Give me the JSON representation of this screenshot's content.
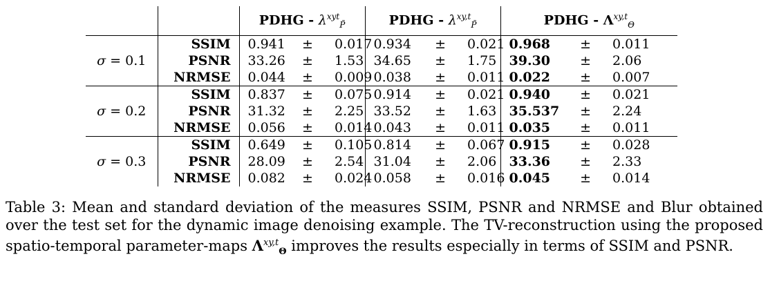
{
  "table": {
    "headers": [
      {
        "method": "PDHG - ",
        "symbol": "λ",
        "sup": "xyt",
        "sub": "P̃"
      },
      {
        "method": "PDHG - ",
        "symbol": "λ",
        "sup": "xy,t",
        "sub": "P̃"
      },
      {
        "method": "PDHG - ",
        "symbol": "Λ",
        "sup": "xy,t",
        "sub": "Θ"
      }
    ],
    "pm": "±",
    "groups": [
      {
        "sigma_var": "σ",
        "sigma_rest": " = 0.1",
        "rows": [
          {
            "metric": "SSIM",
            "cells": [
              [
                "0.941",
                "0.017"
              ],
              [
                "0.934",
                "0.021"
              ],
              [
                "0.968",
                "0.011"
              ]
            ]
          },
          {
            "metric": "PSNR",
            "cells": [
              [
                "33.26",
                "1.53"
              ],
              [
                "34.65",
                "1.75"
              ],
              [
                "39.30",
                "2.06"
              ]
            ]
          },
          {
            "metric": "NRMSE",
            "cells": [
              [
                "0.044",
                "0.009"
              ],
              [
                "0.038",
                "0.011"
              ],
              [
                "0.022",
                "0.007"
              ]
            ]
          }
        ]
      },
      {
        "sigma_var": "σ",
        "sigma_rest": " = 0.2",
        "rows": [
          {
            "metric": "SSIM",
            "cells": [
              [
                "0.837",
                "0.075"
              ],
              [
                "0.914",
                "0.021"
              ],
              [
                "0.940",
                "0.021"
              ]
            ]
          },
          {
            "metric": "PSNR",
            "cells": [
              [
                "31.32",
                "2.25"
              ],
              [
                "33.52",
                "1.63"
              ],
              [
                "35.537",
                "2.24"
              ]
            ]
          },
          {
            "metric": "NRMSE",
            "cells": [
              [
                "0.056",
                "0.014"
              ],
              [
                "0.043",
                "0.011"
              ],
              [
                "0.035",
                "0.011"
              ]
            ]
          }
        ]
      },
      {
        "sigma_var": "σ",
        "sigma_rest": " = 0.3",
        "rows": [
          {
            "metric": "SSIM",
            "cells": [
              [
                "0.649",
                "0.105"
              ],
              [
                "0.814",
                "0.067"
              ],
              [
                "0.915",
                "0.028"
              ]
            ]
          },
          {
            "metric": "PSNR",
            "cells": [
              [
                "28.09",
                "2.54"
              ],
              [
                "31.04",
                "2.06"
              ],
              [
                "33.36",
                "2.33"
              ]
            ]
          },
          {
            "metric": "NRMSE",
            "cells": [
              [
                "0.082",
                "0.024"
              ],
              [
                "0.058",
                "0.016"
              ],
              [
                "0.045",
                "0.014"
              ]
            ]
          }
        ]
      }
    ]
  },
  "caption": {
    "label": "Table 3:",
    "text_before": " Mean and standard deviation of the measures SSIM, PSNR and NRMSE and Blur obtained over the test set for the dynamic image denoising example. The TV-reconstruction using the proposed spatio-temporal parameter-maps ",
    "symbol": "Λ",
    "symbol_sup": "xy,t",
    "symbol_sub": "Θ",
    "text_after": " improves the results especially in terms of SSIM and PSNR."
  }
}
